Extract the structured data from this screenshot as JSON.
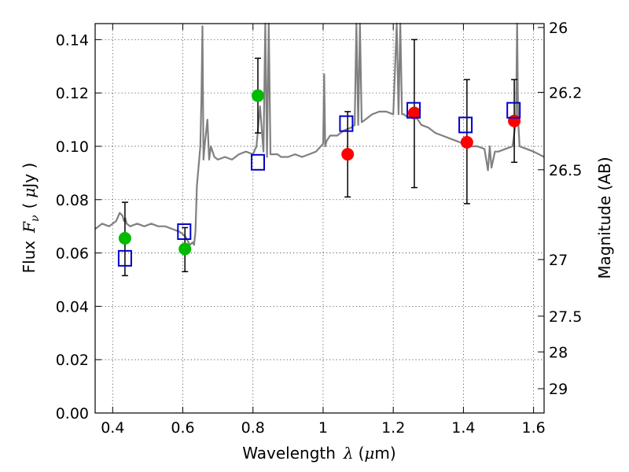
{
  "chart_data": {
    "type": "scatter",
    "xlabel_prefix": "Wavelength",
    "xlabel_symbol": "λ",
    "xlabel_unit_open": "(",
    "xlabel_unit_mu": "μ",
    "xlabel_unit_rest": "m)",
    "ylabel_prefix": "Flux",
    "ylabel_symbol": "F",
    "ylabel_sub": "ν",
    "ylabel_unit_open": "(",
    "ylabel_unit_mu": "μ",
    "ylabel_unit_rest": "Jy )",
    "y2label": "Magnitude (AB)",
    "xlim": [
      0.35,
      1.63
    ],
    "ylim": [
      0.0,
      0.146
    ],
    "grid": true,
    "x_ticks": [
      {
        "value": 0.4,
        "label": "0.4"
      },
      {
        "value": 0.6,
        "label": "0.6"
      },
      {
        "value": 0.8,
        "label": "0.8"
      },
      {
        "value": 1.0,
        "label": "1"
      },
      {
        "value": 1.2,
        "label": "1.2"
      },
      {
        "value": 1.4,
        "label": "1.4"
      },
      {
        "value": 1.6,
        "label": "1.6"
      }
    ],
    "y_ticks": [
      {
        "value": 0.0,
        "label": "0.00"
      },
      {
        "value": 0.02,
        "label": "0.02"
      },
      {
        "value": 0.04,
        "label": "0.04"
      },
      {
        "value": 0.06,
        "label": "0.06"
      },
      {
        "value": 0.08,
        "label": "0.08"
      },
      {
        "value": 0.1,
        "label": "0.10"
      },
      {
        "value": 0.12,
        "label": "0.12"
      },
      {
        "value": 0.14,
        "label": "0.14"
      }
    ],
    "y2_ticks": [
      {
        "mag": 26,
        "label": "26"
      },
      {
        "mag": 26.2,
        "label": "26.2"
      },
      {
        "mag": 26.5,
        "label": "26.5"
      },
      {
        "mag": 27,
        "label": "27"
      },
      {
        "mag": 27.5,
        "label": "27.5"
      },
      {
        "mag": 28,
        "label": "28"
      },
      {
        "mag": 29,
        "label": "29"
      }
    ],
    "model_spectrum": {
      "color": "#808080",
      "x": [
        0.35,
        0.37,
        0.39,
        0.41,
        0.42,
        0.428,
        0.432,
        0.436,
        0.44,
        0.45,
        0.47,
        0.49,
        0.51,
        0.53,
        0.55,
        0.57,
        0.59,
        0.6,
        0.608,
        0.612,
        0.62,
        0.628,
        0.632,
        0.636,
        0.64,
        0.65,
        0.653,
        0.656,
        0.659,
        0.662,
        0.67,
        0.675,
        0.68,
        0.685,
        0.69,
        0.7,
        0.72,
        0.74,
        0.76,
        0.78,
        0.8,
        0.81,
        0.82,
        0.83,
        0.835,
        0.84,
        0.845,
        0.85,
        0.86,
        0.87,
        0.88,
        0.9,
        0.92,
        0.94,
        0.96,
        0.98,
        1.0,
        1.003,
        1.006,
        1.01,
        1.02,
        1.04,
        1.06,
        1.08,
        1.09,
        1.095,
        1.1,
        1.105,
        1.11,
        1.12,
        1.14,
        1.16,
        1.18,
        1.2,
        1.21,
        1.215,
        1.22,
        1.225,
        1.23,
        1.24,
        1.26,
        1.28,
        1.3,
        1.32,
        1.34,
        1.36,
        1.38,
        1.4,
        1.42,
        1.44,
        1.46,
        1.47,
        1.475,
        1.48,
        1.49,
        1.5,
        1.52,
        1.54,
        1.55,
        1.553,
        1.556,
        1.56,
        1.58,
        1.6,
        1.63
      ],
      "y": [
        0.069,
        0.071,
        0.07,
        0.072,
        0.075,
        0.074,
        0.072,
        0.073,
        0.071,
        0.07,
        0.071,
        0.07,
        0.071,
        0.07,
        0.07,
        0.069,
        0.068,
        0.067,
        0.066,
        0.065,
        0.063,
        0.064,
        0.063,
        0.068,
        0.085,
        0.1,
        0.118,
        0.145,
        0.095,
        0.1,
        0.11,
        0.095,
        0.1,
        0.098,
        0.096,
        0.095,
        0.096,
        0.095,
        0.097,
        0.098,
        0.097,
        0.1,
        0.115,
        0.098,
        0.146,
        0.096,
        0.146,
        0.097,
        0.097,
        0.097,
        0.096,
        0.096,
        0.097,
        0.096,
        0.097,
        0.098,
        0.101,
        0.127,
        0.1,
        0.102,
        0.104,
        0.104,
        0.106,
        0.107,
        0.108,
        0.146,
        0.108,
        0.146,
        0.109,
        0.11,
        0.112,
        0.113,
        0.113,
        0.112,
        0.146,
        0.112,
        0.146,
        0.112,
        0.112,
        0.111,
        0.112,
        0.108,
        0.107,
        0.105,
        0.104,
        0.103,
        0.102,
        0.101,
        0.1,
        0.1,
        0.099,
        0.091,
        0.1,
        0.092,
        0.098,
        0.098,
        0.099,
        0.1,
        0.11,
        0.146,
        0.11,
        0.1,
        0.099,
        0.098,
        0.096
      ]
    },
    "series": [
      {
        "name": "observed-green",
        "marker": "circle",
        "color": "#00bb00",
        "points": [
          {
            "x": 0.435,
            "y": 0.0655,
            "err_low": 0.0515,
            "err_high": 0.079
          },
          {
            "x": 0.606,
            "y": 0.0615,
            "err_low": 0.053,
            "err_high": 0.0695
          },
          {
            "x": 0.814,
            "y": 0.119,
            "err_low": 0.105,
            "err_high": 0.133
          }
        ]
      },
      {
        "name": "observed-red",
        "marker": "circle",
        "color": "#ff0000",
        "points": [
          {
            "x": 1.07,
            "y": 0.097,
            "err_low": 0.081,
            "err_high": 0.113
          },
          {
            "x": 1.26,
            "y": 0.1125,
            "err_low": 0.0845,
            "err_high": 0.14
          },
          {
            "x": 1.41,
            "y": 0.1015,
            "err_low": 0.0785,
            "err_high": 0.125
          },
          {
            "x": 1.545,
            "y": 0.1095,
            "err_low": 0.094,
            "err_high": 0.125
          }
        ]
      },
      {
        "name": "model-photometry",
        "marker": "open-square",
        "color": "#0000cc",
        "points": [
          {
            "x": 0.435,
            "y": 0.058
          },
          {
            "x": 0.604,
            "y": 0.068
          },
          {
            "x": 0.814,
            "y": 0.094
          },
          {
            "x": 1.066,
            "y": 0.1085
          },
          {
            "x": 1.258,
            "y": 0.1135
          },
          {
            "x": 1.406,
            "y": 0.108
          },
          {
            "x": 1.543,
            "y": 0.1135
          }
        ]
      }
    ]
  }
}
